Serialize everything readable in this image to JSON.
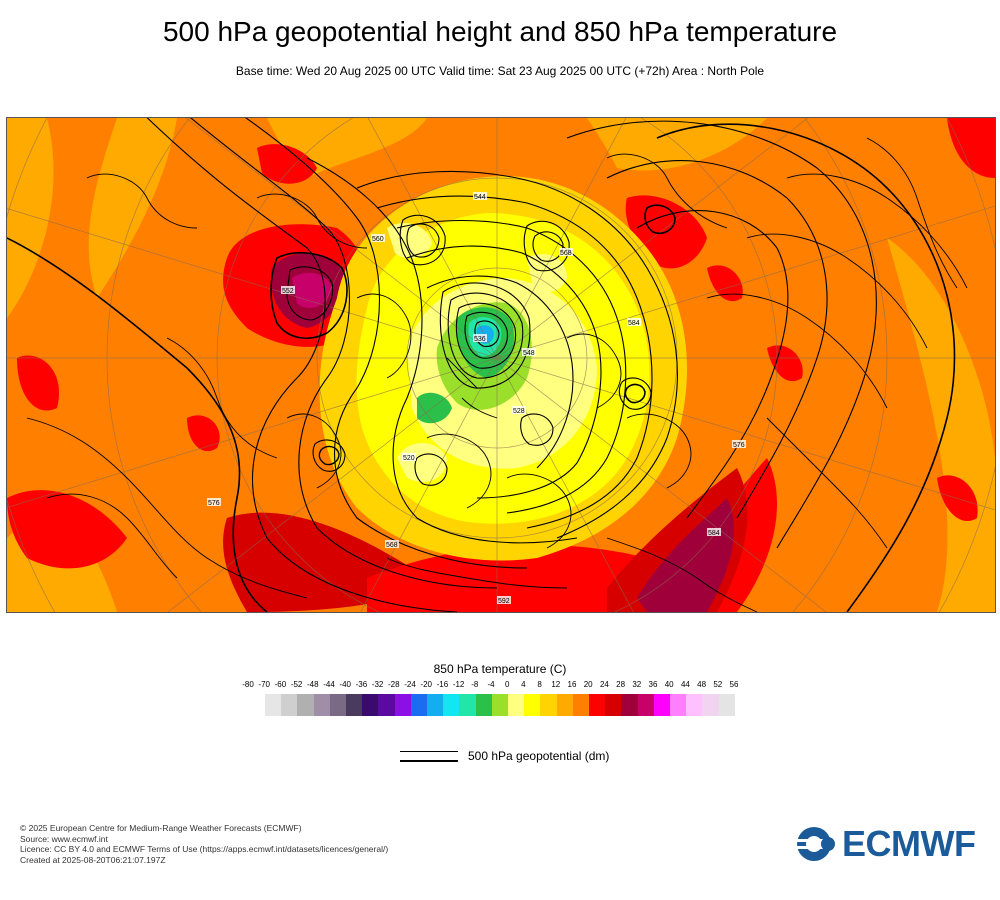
{
  "header": {
    "title": "500 hPa geopotential height and 850 hPa temperature",
    "subtitle": "Base time: Wed 20 Aug 2025 00 UTC Valid time: Sat 23 Aug 2025 00 UTC (+72h) Area : North Pole"
  },
  "colorbar": {
    "title": "850 hPa temperature (C)",
    "ticks": [
      "-80",
      "-70",
      "-60",
      "-52",
      "-48",
      "-44",
      "-40",
      "-36",
      "-32",
      "-28",
      "-24",
      "-20",
      "-16",
      "-12",
      "-8",
      "-4",
      "0",
      "4",
      "8",
      "12",
      "16",
      "20",
      "24",
      "28",
      "32",
      "36",
      "40",
      "44",
      "48",
      "52",
      "56"
    ],
    "colors": [
      "#e6e6e6",
      "#cfcfcf",
      "#b0b0b0",
      "#a08ea8",
      "#7a6a86",
      "#4a3a5e",
      "#3a0a6e",
      "#5a0aa0",
      "#8a10e6",
      "#1a6cf0",
      "#12aef0",
      "#12e6f0",
      "#22e6a8",
      "#2ac04a",
      "#9ae02a",
      "#ffff80",
      "#ffff00",
      "#ffd400",
      "#ffaa00",
      "#ff7f00",
      "#ff0000",
      "#d60000",
      "#a0003a",
      "#c8006a",
      "#ff00ff",
      "#ff80ff",
      "#ffc0ff",
      "#f0d4f0",
      "#e4e4e4"
    ]
  },
  "legend": {
    "label": "500 hPa geopotential (dm)"
  },
  "map": {
    "contour_labels": [
      "552",
      "576",
      "560",
      "568",
      "584",
      "544",
      "536",
      "528",
      "548",
      "520",
      "568",
      "576",
      "584",
      "592"
    ]
  },
  "footer": {
    "line1": "© 2025 European Centre for Medium-Range Weather Forecasts (ECMWF)",
    "line2": "Source: www.ecmwf.int",
    "line3": "Licence: CC BY 4.0 and ECMWF Terms of Use (https://apps.ecmwf.int/datasets/licences/general/)",
    "line4": "Created at 2025-08-20T06:21:07.197Z"
  },
  "logo": {
    "text": "ECMWF",
    "color": "#1b5b9a"
  }
}
